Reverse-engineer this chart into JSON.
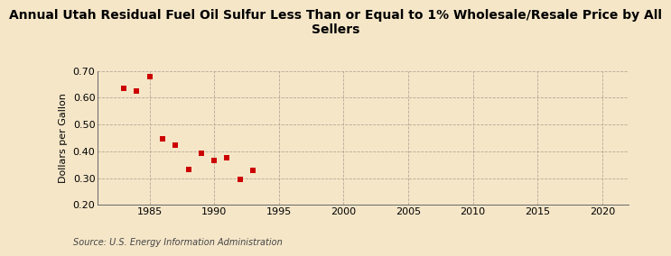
{
  "title": "Annual Utah Residual Fuel Oil Sulfur Less Than or Equal to 1% Wholesale/Resale Price by All\nSellers",
  "ylabel": "Dollars per Gallon",
  "source": "Source: U.S. Energy Information Administration",
  "x_data": [
    1983,
    1984,
    1985,
    1986,
    1987,
    1988,
    1989,
    1990,
    1991,
    1992,
    1993
  ],
  "y_data": [
    0.635,
    0.625,
    0.678,
    0.448,
    0.423,
    0.333,
    0.392,
    0.365,
    0.375,
    0.295,
    0.33
  ],
  "marker_color": "#cc0000",
  "marker": "s",
  "marker_size": 5,
  "xlim": [
    1981,
    2022
  ],
  "ylim": [
    0.2,
    0.7
  ],
  "xticks": [
    1985,
    1990,
    1995,
    2000,
    2005,
    2010,
    2015,
    2020
  ],
  "yticks": [
    0.2,
    0.3,
    0.4,
    0.5,
    0.6,
    0.7
  ],
  "background_color": "#f5e6c8",
  "grid_color": "#b0a090",
  "title_fontsize": 10,
  "label_fontsize": 8,
  "tick_fontsize": 8,
  "source_fontsize": 7
}
